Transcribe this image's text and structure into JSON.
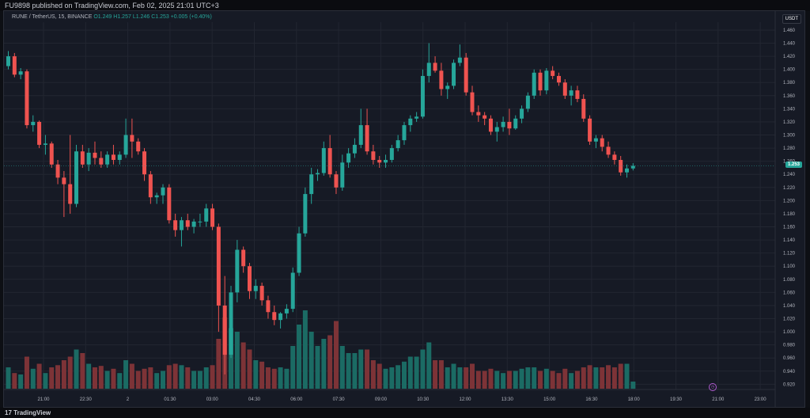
{
  "header": {
    "publish_text": "FU9898 published on TradingView.com, Feb 02, 2025 21:01 UTC+3"
  },
  "footer": {
    "brand": "TradingView",
    "logo_glyph": "17"
  },
  "legend": {
    "symbol": "RUNE / TetherUS, 15, BINANCE",
    "open": "O1.249",
    "high": "H1.257",
    "low": "L1.246",
    "close": "C1.253",
    "change": "+0.005 (+0.40%)"
  },
  "price_axis": {
    "currency": "USDT",
    "last_price": "1.253",
    "ticks": [
      "1.460",
      "1.440",
      "1.420",
      "1.400",
      "1.380",
      "1.360",
      "1.340",
      "1.320",
      "1.300",
      "1.280",
      "1.260",
      "1.240",
      "1.220",
      "1.200",
      "1.180",
      "1.160",
      "1.140",
      "1.120",
      "1.100",
      "1.080",
      "1.060",
      "1.040",
      "1.020",
      "1.000",
      "0.980",
      "0.960",
      "0.940",
      "0.920"
    ]
  },
  "time_axis": {
    "ticks": [
      "21:00",
      "22:30",
      "2",
      "01:30",
      "03:00",
      "04:30",
      "06:00",
      "07:30",
      "09:00",
      "10:30",
      "12:00",
      "13:30",
      "15:00",
      "16:30",
      "18:00",
      "19:30",
      "21:00",
      "23:00"
    ]
  },
  "colors": {
    "up": "#26a69a",
    "down": "#ef5350",
    "up_vol": "#1b6b64",
    "down_vol": "#7d3337",
    "grid": "#222631"
  },
  "chart_data": {
    "type": "candlestick",
    "symbol": "RUNE / TetherUS",
    "interval": "15",
    "exchange": "BINANCE",
    "ylim": [
      0.912,
      1.472
    ],
    "candles": [
      {
        "o": 1.405,
        "h": 1.428,
        "l": 1.4,
        "c": 1.42,
        "v": 0.3
      },
      {
        "o": 1.42,
        "h": 1.425,
        "l": 1.388,
        "c": 1.392,
        "v": 0.22
      },
      {
        "o": 1.392,
        "h": 1.402,
        "l": 1.385,
        "c": 1.397,
        "v": 0.2
      },
      {
        "o": 1.397,
        "h": 1.4,
        "l": 1.31,
        "c": 1.315,
        "v": 0.45
      },
      {
        "o": 1.315,
        "h": 1.33,
        "l": 1.305,
        "c": 1.32,
        "v": 0.28
      },
      {
        "o": 1.32,
        "h": 1.322,
        "l": 1.28,
        "c": 1.285,
        "v": 0.35
      },
      {
        "o": 1.285,
        "h": 1.3,
        "l": 1.27,
        "c": 1.287,
        "v": 0.22
      },
      {
        "o": 1.287,
        "h": 1.29,
        "l": 1.25,
        "c": 1.255,
        "v": 0.3
      },
      {
        "o": 1.255,
        "h": 1.262,
        "l": 1.225,
        "c": 1.235,
        "v": 0.33
      },
      {
        "o": 1.235,
        "h": 1.245,
        "l": 1.175,
        "c": 1.225,
        "v": 0.4
      },
      {
        "o": 1.225,
        "h": 1.3,
        "l": 1.18,
        "c": 1.195,
        "v": 0.45
      },
      {
        "o": 1.195,
        "h": 1.285,
        "l": 1.19,
        "c": 1.275,
        "v": 0.55
      },
      {
        "o": 1.275,
        "h": 1.285,
        "l": 1.25,
        "c": 1.255,
        "v": 0.5
      },
      {
        "o": 1.255,
        "h": 1.28,
        "l": 1.245,
        "c": 1.273,
        "v": 0.35
      },
      {
        "o": 1.273,
        "h": 1.29,
        "l": 1.255,
        "c": 1.265,
        "v": 0.3
      },
      {
        "o": 1.265,
        "h": 1.275,
        "l": 1.25,
        "c": 1.255,
        "v": 0.32
      },
      {
        "o": 1.255,
        "h": 1.275,
        "l": 1.25,
        "c": 1.27,
        "v": 0.25
      },
      {
        "o": 1.27,
        "h": 1.285,
        "l": 1.255,
        "c": 1.262,
        "v": 0.28
      },
      {
        "o": 1.262,
        "h": 1.275,
        "l": 1.255,
        "c": 1.27,
        "v": 0.22
      },
      {
        "o": 1.27,
        "h": 1.325,
        "l": 1.265,
        "c": 1.3,
        "v": 0.4
      },
      {
        "o": 1.3,
        "h": 1.325,
        "l": 1.265,
        "c": 1.29,
        "v": 0.35
      },
      {
        "o": 1.29,
        "h": 1.295,
        "l": 1.27,
        "c": 1.275,
        "v": 0.25
      },
      {
        "o": 1.275,
        "h": 1.28,
        "l": 1.23,
        "c": 1.24,
        "v": 0.28
      },
      {
        "o": 1.24,
        "h": 1.245,
        "l": 1.195,
        "c": 1.205,
        "v": 0.3
      },
      {
        "o": 1.205,
        "h": 1.212,
        "l": 1.195,
        "c": 1.208,
        "v": 0.22
      },
      {
        "o": 1.208,
        "h": 1.225,
        "l": 1.195,
        "c": 1.22,
        "v": 0.25
      },
      {
        "o": 1.22,
        "h": 1.225,
        "l": 1.165,
        "c": 1.17,
        "v": 0.33
      },
      {
        "o": 1.17,
        "h": 1.18,
        "l": 1.145,
        "c": 1.155,
        "v": 0.35
      },
      {
        "o": 1.155,
        "h": 1.175,
        "l": 1.13,
        "c": 1.17,
        "v": 0.33
      },
      {
        "o": 1.17,
        "h": 1.18,
        "l": 1.155,
        "c": 1.16,
        "v": 0.3
      },
      {
        "o": 1.16,
        "h": 1.172,
        "l": 1.15,
        "c": 1.168,
        "v": 0.25
      },
      {
        "o": 1.168,
        "h": 1.18,
        "l": 1.16,
        "c": 1.168,
        "v": 0.25
      },
      {
        "o": 1.168,
        "h": 1.195,
        "l": 1.16,
        "c": 1.188,
        "v": 0.3
      },
      {
        "o": 1.188,
        "h": 1.195,
        "l": 1.155,
        "c": 1.16,
        "v": 0.33
      },
      {
        "o": 1.16,
        "h": 1.165,
        "l": 1.0,
        "c": 1.04,
        "v": 0.7
      },
      {
        "o": 1.04,
        "h": 1.085,
        "l": 0.935,
        "c": 0.965,
        "v": 1.0
      },
      {
        "o": 0.965,
        "h": 1.07,
        "l": 0.96,
        "c": 1.06,
        "v": 0.85
      },
      {
        "o": 1.06,
        "h": 1.14,
        "l": 1.045,
        "c": 1.125,
        "v": 0.8
      },
      {
        "o": 1.125,
        "h": 1.13,
        "l": 1.09,
        "c": 1.1,
        "v": 0.65
      },
      {
        "o": 1.1,
        "h": 1.105,
        "l": 1.05,
        "c": 1.062,
        "v": 0.55
      },
      {
        "o": 1.062,
        "h": 1.08,
        "l": 1.05,
        "c": 1.07,
        "v": 0.4
      },
      {
        "o": 1.07,
        "h": 1.075,
        "l": 1.04,
        "c": 1.048,
        "v": 0.38
      },
      {
        "o": 1.048,
        "h": 1.055,
        "l": 1.02,
        "c": 1.03,
        "v": 0.3
      },
      {
        "o": 1.03,
        "h": 1.04,
        "l": 1.01,
        "c": 1.018,
        "v": 0.28
      },
      {
        "o": 1.018,
        "h": 1.03,
        "l": 1.005,
        "c": 1.028,
        "v": 0.3
      },
      {
        "o": 1.028,
        "h": 1.042,
        "l": 1.02,
        "c": 1.035,
        "v": 0.28
      },
      {
        "o": 1.035,
        "h": 1.098,
        "l": 1.03,
        "c": 1.09,
        "v": 0.6
      },
      {
        "o": 1.09,
        "h": 1.16,
        "l": 1.085,
        "c": 1.15,
        "v": 0.9
      },
      {
        "o": 1.15,
        "h": 1.22,
        "l": 1.145,
        "c": 1.21,
        "v": 1.1
      },
      {
        "o": 1.21,
        "h": 1.25,
        "l": 1.195,
        "c": 1.24,
        "v": 0.8
      },
      {
        "o": 1.24,
        "h": 1.248,
        "l": 1.23,
        "c": 1.242,
        "v": 0.6
      },
      {
        "o": 1.242,
        "h": 1.29,
        "l": 1.238,
        "c": 1.28,
        "v": 0.7
      },
      {
        "o": 1.28,
        "h": 1.3,
        "l": 1.235,
        "c": 1.24,
        "v": 0.75
      },
      {
        "o": 1.24,
        "h": 1.245,
        "l": 1.21,
        "c": 1.22,
        "v": 0.95
      },
      {
        "o": 1.22,
        "h": 1.27,
        "l": 1.215,
        "c": 1.258,
        "v": 0.6
      },
      {
        "o": 1.258,
        "h": 1.28,
        "l": 1.25,
        "c": 1.272,
        "v": 0.5
      },
      {
        "o": 1.272,
        "h": 1.295,
        "l": 1.265,
        "c": 1.285,
        "v": 0.5
      },
      {
        "o": 1.285,
        "h": 1.34,
        "l": 1.28,
        "c": 1.315,
        "v": 0.55
      },
      {
        "o": 1.315,
        "h": 1.34,
        "l": 1.27,
        "c": 1.275,
        "v": 0.55
      },
      {
        "o": 1.275,
        "h": 1.285,
        "l": 1.255,
        "c": 1.262,
        "v": 0.4
      },
      {
        "o": 1.262,
        "h": 1.268,
        "l": 1.25,
        "c": 1.258,
        "v": 0.35
      },
      {
        "o": 1.258,
        "h": 1.27,
        "l": 1.25,
        "c": 1.262,
        "v": 0.28
      },
      {
        "o": 1.262,
        "h": 1.285,
        "l": 1.258,
        "c": 1.28,
        "v": 0.3
      },
      {
        "o": 1.28,
        "h": 1.3,
        "l": 1.275,
        "c": 1.292,
        "v": 0.33
      },
      {
        "o": 1.292,
        "h": 1.32,
        "l": 1.285,
        "c": 1.315,
        "v": 0.38
      },
      {
        "o": 1.315,
        "h": 1.33,
        "l": 1.305,
        "c": 1.325,
        "v": 0.45
      },
      {
        "o": 1.325,
        "h": 1.335,
        "l": 1.32,
        "c": 1.328,
        "v": 0.45
      },
      {
        "o": 1.328,
        "h": 1.4,
        "l": 1.325,
        "c": 1.39,
        "v": 0.55
      },
      {
        "o": 1.39,
        "h": 1.44,
        "l": 1.38,
        "c": 1.41,
        "v": 0.65
      },
      {
        "o": 1.41,
        "h": 1.42,
        "l": 1.395,
        "c": 1.398,
        "v": 0.4
      },
      {
        "o": 1.398,
        "h": 1.41,
        "l": 1.36,
        "c": 1.37,
        "v": 0.4
      },
      {
        "o": 1.37,
        "h": 1.38,
        "l": 1.355,
        "c": 1.375,
        "v": 0.3
      },
      {
        "o": 1.375,
        "h": 1.415,
        "l": 1.37,
        "c": 1.41,
        "v": 0.35
      },
      {
        "o": 1.41,
        "h": 1.438,
        "l": 1.405,
        "c": 1.418,
        "v": 0.3
      },
      {
        "o": 1.418,
        "h": 1.425,
        "l": 1.36,
        "c": 1.365,
        "v": 0.3
      },
      {
        "o": 1.365,
        "h": 1.375,
        "l": 1.33,
        "c": 1.335,
        "v": 0.35
      },
      {
        "o": 1.335,
        "h": 1.345,
        "l": 1.32,
        "c": 1.33,
        "v": 0.25
      },
      {
        "o": 1.33,
        "h": 1.335,
        "l": 1.315,
        "c": 1.325,
        "v": 0.25
      },
      {
        "o": 1.325,
        "h": 1.33,
        "l": 1.3,
        "c": 1.305,
        "v": 0.28
      },
      {
        "o": 1.305,
        "h": 1.32,
        "l": 1.29,
        "c": 1.312,
        "v": 0.25
      },
      {
        "o": 1.312,
        "h": 1.328,
        "l": 1.305,
        "c": 1.32,
        "v": 0.22
      },
      {
        "o": 1.32,
        "h": 1.34,
        "l": 1.3,
        "c": 1.31,
        "v": 0.25
      },
      {
        "o": 1.31,
        "h": 1.33,
        "l": 1.308,
        "c": 1.325,
        "v": 0.25
      },
      {
        "o": 1.325,
        "h": 1.345,
        "l": 1.318,
        "c": 1.34,
        "v": 0.28
      },
      {
        "o": 1.34,
        "h": 1.365,
        "l": 1.335,
        "c": 1.36,
        "v": 0.3
      },
      {
        "o": 1.36,
        "h": 1.4,
        "l": 1.355,
        "c": 1.395,
        "v": 0.3
      },
      {
        "o": 1.395,
        "h": 1.4,
        "l": 1.36,
        "c": 1.368,
        "v": 0.25
      },
      {
        "o": 1.368,
        "h": 1.402,
        "l": 1.362,
        "c": 1.398,
        "v": 0.28
      },
      {
        "o": 1.398,
        "h": 1.405,
        "l": 1.385,
        "c": 1.39,
        "v": 0.25
      },
      {
        "o": 1.39,
        "h": 1.395,
        "l": 1.375,
        "c": 1.38,
        "v": 0.22
      },
      {
        "o": 1.38,
        "h": 1.385,
        "l": 1.355,
        "c": 1.36,
        "v": 0.28
      },
      {
        "o": 1.36,
        "h": 1.375,
        "l": 1.345,
        "c": 1.368,
        "v": 0.22
      },
      {
        "o": 1.368,
        "h": 1.375,
        "l": 1.35,
        "c": 1.355,
        "v": 0.25
      },
      {
        "o": 1.355,
        "h": 1.362,
        "l": 1.32,
        "c": 1.325,
        "v": 0.3
      },
      {
        "o": 1.325,
        "h": 1.33,
        "l": 1.285,
        "c": 1.29,
        "v": 0.33
      },
      {
        "o": 1.29,
        "h": 1.3,
        "l": 1.28,
        "c": 1.295,
        "v": 0.3
      },
      {
        "o": 1.295,
        "h": 1.3,
        "l": 1.275,
        "c": 1.282,
        "v": 0.3
      },
      {
        "o": 1.282,
        "h": 1.29,
        "l": 1.265,
        "c": 1.27,
        "v": 0.33
      },
      {
        "o": 1.27,
        "h": 1.275,
        "l": 1.255,
        "c": 1.262,
        "v": 0.3
      },
      {
        "o": 1.262,
        "h": 1.268,
        "l": 1.238,
        "c": 1.243,
        "v": 0.35
      },
      {
        "o": 1.243,
        "h": 1.255,
        "l": 1.235,
        "c": 1.249,
        "v": 0.35
      },
      {
        "o": 1.249,
        "h": 1.257,
        "l": 1.246,
        "c": 1.253,
        "v": 0.1
      }
    ]
  }
}
